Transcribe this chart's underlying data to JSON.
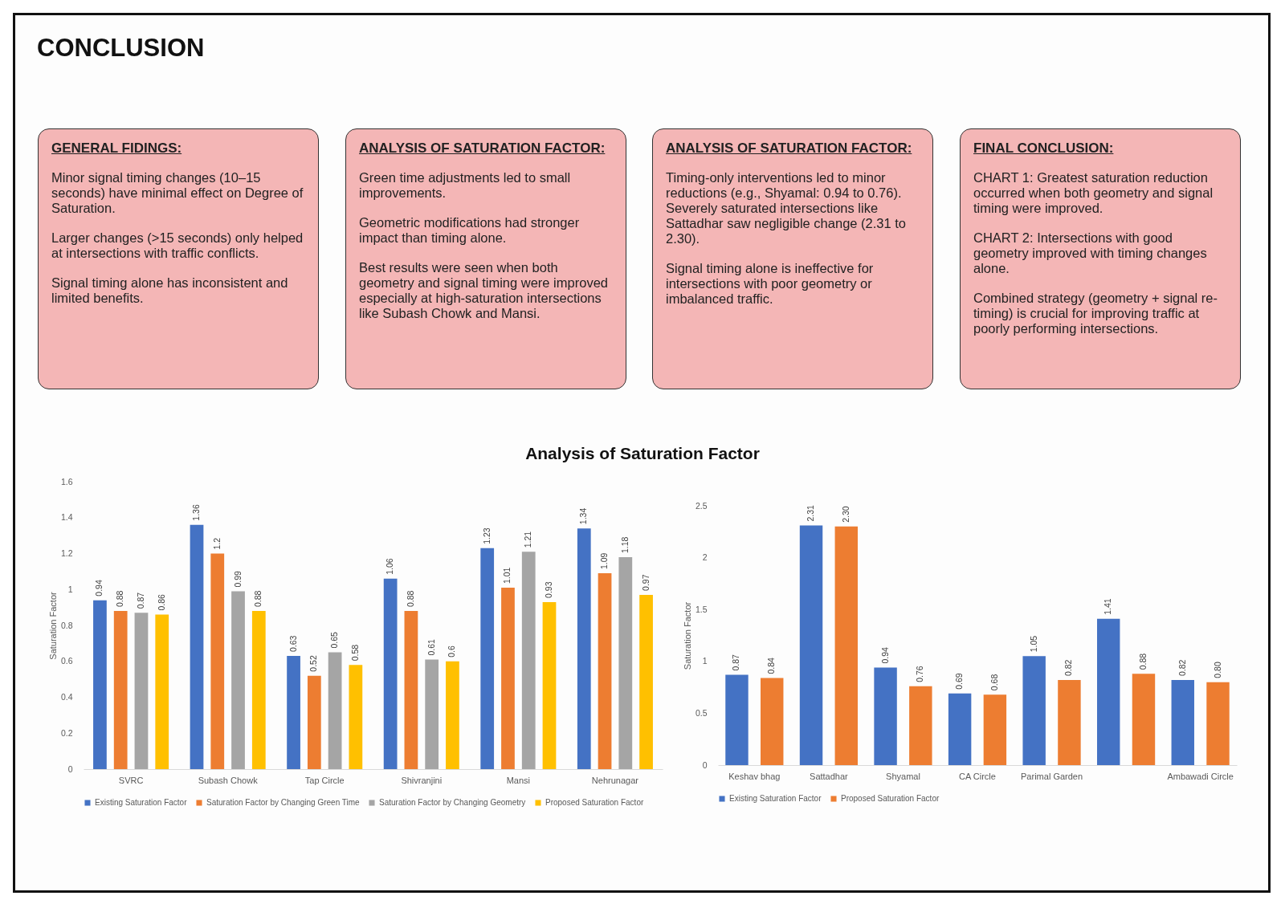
{
  "chart_data": [
    {
      "type": "other",
      "title": "CONCLUSION"
    },
    {
      "type": "other",
      "title": "GENERAL FIDINGS:",
      "annotations": [
        "Minor signal timing changes (10–15 seconds) have minimal effect on Degree of Saturation.",
        "Larger changes (>15 seconds) only helped at intersections with traffic conflicts.",
        "Signal timing alone has inconsistent and limited benefits."
      ]
    },
    {
      "type": "other",
      "title": "ANALYSIS OF SATURATION FACTOR:",
      "annotations": [
        "Green time adjustments led to small improvements.",
        "Geometric modifications had stronger impact than timing alone.",
        "Best results were seen when both geometry and signal timing were improved especially at high-saturation intersections like Subash Chowk and Mansi."
      ]
    },
    {
      "type": "other",
      "title": "ANALYSIS OF SATURATION FACTOR:",
      "annotations": [
        "Timing-only interventions led to minor reductions (e.g., Shyamal: 0.94 to 0.76). Severely saturated intersections like Sattadhar saw negligible change (2.31 to 2.30).",
        "Signal timing alone is ineffective for intersections with poor geometry or imbalanced traffic."
      ]
    },
    {
      "type": "other",
      "title": "FINAL CONCLUSION:",
      "annotations": [
        "CHART 1: Greatest saturation reduction occurred when both geometry and signal timing were improved.",
        "CHART 2: Intersections with good geometry improved with timing changes alone.",
        "Combined strategy (geometry + signal re-timing) is crucial for improving traffic at poorly performing intersections."
      ]
    },
    {
      "type": "bar",
      "title": "Analysis of Saturation Factor",
      "ylabel": "Saturation Factor",
      "categories": [
        "SVRC",
        "Subash Chowk",
        "Tap Circle",
        "Shivranjini",
        "Mansi",
        "Nehrunagar"
      ],
      "series": [
        {
          "name": "Existing Saturation Factor",
          "color": "#4472c4",
          "values": [
            0.94,
            1.36,
            0.63,
            1.06,
            1.23,
            1.34
          ]
        },
        {
          "name": "Saturation Factor by Changing Green Time",
          "color": "#ed7d31",
          "values": [
            0.88,
            1.2,
            0.52,
            0.88,
            1.01,
            1.09
          ]
        },
        {
          "name": "Saturation Factor by Changing Geometry",
          "color": "#a5a5a5",
          "values": [
            0.87,
            0.99,
            0.65,
            0.61,
            1.21,
            1.18
          ]
        },
        {
          "name": "Proposed Saturation Factor",
          "color": "#ffc000",
          "values": [
            0.86,
            0.88,
            0.58,
            0.6,
            0.93,
            0.97
          ]
        }
      ],
      "ylim": [
        0,
        1.6
      ],
      "yticks": [
        0,
        0.2,
        0.4,
        0.6,
        0.8,
        1,
        1.2,
        1.4,
        1.6
      ],
      "data_labels": true,
      "legend": "bottom"
    },
    {
      "type": "bar",
      "ylabel": "Saturation Factor",
      "categories": [
        "Keshav bhag",
        "Sattadhar",
        "Shyamal",
        "CA Circle",
        "Parimal Garden",
        null,
        "Ambawadi Circle"
      ],
      "series": [
        {
          "name": "Existing Saturation Factor",
          "color": "#4472c4",
          "values": [
            0.87,
            2.31,
            0.94,
            0.69,
            1.05,
            1.41,
            0.82
          ],
          "value_labels": [
            "0.87",
            "2.31",
            "0.94",
            "0.69",
            "1.05",
            "1.41",
            "0.82"
          ]
        },
        {
          "name": "Proposed Saturation Factor",
          "color": "#ed7d31",
          "values": [
            0.84,
            2.3,
            0.76,
            0.68,
            0.82,
            0.88,
            0.8
          ],
          "value_labels": [
            "0.84",
            "2.30",
            "0.76",
            "0.68",
            "0.82",
            "0.88",
            "0.80"
          ]
        }
      ],
      "ylim": [
        0,
        2.5
      ],
      "yticks": [
        0,
        0.5,
        1,
        1.5,
        2,
        2.5
      ],
      "legend": "bottom"
    }
  ]
}
